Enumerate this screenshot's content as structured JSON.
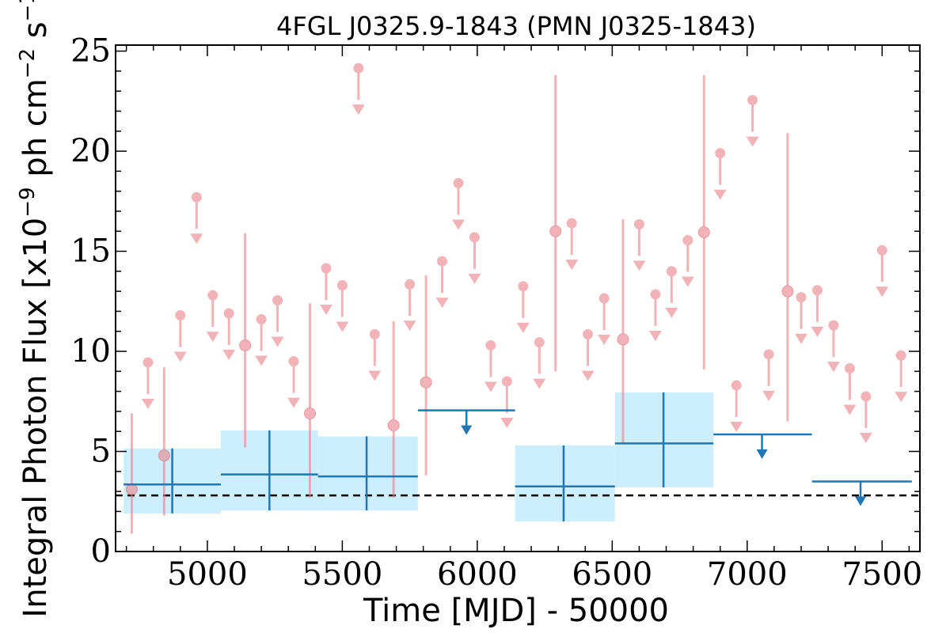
{
  "chart_data": {
    "type": "scatter",
    "title": "4FGL J0325.9-1843 (PMN J0325-1843)",
    "xlabel": "Time [MJD] - 50000",
    "ylabel": "Integral Photon Flux [x10^-9 ph cm^-2 s^-1]",
    "xlim": [
      4660,
      7640
    ],
    "ylim": [
      0,
      25.3
    ],
    "xticks": [
      5000,
      5500,
      6000,
      6500,
      7000,
      7500
    ],
    "yticks": [
      0,
      5,
      10,
      15,
      20,
      25
    ],
    "grid": false,
    "legend": "none",
    "colors": {
      "short_bins": "#e8828a",
      "long_bins": "#1f77b4",
      "long_bin_band": "#cdeefe",
      "average_line": "#000000"
    },
    "average_flux": 2.8,
    "short_bins": {
      "half_width": 30,
      "detections": [
        {
          "x": 4720,
          "y": 3.1,
          "ylo": 0.9,
          "yhi": 6.9
        },
        {
          "x": 4840,
          "y": 4.8,
          "ylo": 1.8,
          "yhi": 9.2
        },
        {
          "x": 5140,
          "y": 10.3,
          "ylo": 5.2,
          "yhi": 15.9
        },
        {
          "x": 5380,
          "y": 6.9,
          "ylo": 2.7,
          "yhi": 12.4
        },
        {
          "x": 5690,
          "y": 6.3,
          "ylo": 2.7,
          "yhi": 11.5
        },
        {
          "x": 5810,
          "y": 8.45,
          "ylo": 3.8,
          "yhi": 13.8
        },
        {
          "x": 6290,
          "y": 16.0,
          "ylo": 9.0,
          "yhi": 23.8
        },
        {
          "x": 6540,
          "y": 10.6,
          "ylo": 5.4,
          "yhi": 16.6
        },
        {
          "x": 6840,
          "y": 15.95,
          "ylo": 9.1,
          "yhi": 23.8
        },
        {
          "x": 7150,
          "y": 13.0,
          "ylo": 6.5,
          "yhi": 20.9
        }
      ],
      "upper_limits": [
        {
          "x": 4780,
          "y": 9.45
        },
        {
          "x": 4900,
          "y": 11.8
        },
        {
          "x": 4960,
          "y": 17.7
        },
        {
          "x": 5020,
          "y": 12.8
        },
        {
          "x": 5080,
          "y": 11.9
        },
        {
          "x": 5200,
          "y": 11.6
        },
        {
          "x": 5260,
          "y": 12.55
        },
        {
          "x": 5320,
          "y": 9.5
        },
        {
          "x": 5440,
          "y": 14.15
        },
        {
          "x": 5500,
          "y": 13.3
        },
        {
          "x": 5560,
          "y": 24.15
        },
        {
          "x": 5620,
          "y": 10.85
        },
        {
          "x": 5750,
          "y": 13.35
        },
        {
          "x": 5870,
          "y": 14.5
        },
        {
          "x": 5930,
          "y": 18.4
        },
        {
          "x": 5990,
          "y": 15.7
        },
        {
          "x": 6050,
          "y": 10.3
        },
        {
          "x": 6110,
          "y": 8.5
        },
        {
          "x": 6170,
          "y": 13.25
        },
        {
          "x": 6230,
          "y": 10.45
        },
        {
          "x": 6350,
          "y": 16.4
        },
        {
          "x": 6410,
          "y": 10.85
        },
        {
          "x": 6470,
          "y": 12.65
        },
        {
          "x": 6600,
          "y": 16.35
        },
        {
          "x": 6660,
          "y": 12.85
        },
        {
          "x": 6720,
          "y": 14.0
        },
        {
          "x": 6780,
          "y": 15.55
        },
        {
          "x": 6900,
          "y": 19.9
        },
        {
          "x": 6960,
          "y": 8.3
        },
        {
          "x": 7020,
          "y": 22.55
        },
        {
          "x": 7080,
          "y": 9.85
        },
        {
          "x": 7200,
          "y": 12.7
        },
        {
          "x": 7260,
          "y": 13.05
        },
        {
          "x": 7320,
          "y": 11.3
        },
        {
          "x": 7380,
          "y": 9.15
        },
        {
          "x": 7440,
          "y": 7.75
        },
        {
          "x": 7500,
          "y": 15.05
        },
        {
          "x": 7570,
          "y": 9.8
        }
      ]
    },
    "long_bins": {
      "detections": [
        {
          "x": 4870,
          "xlo": 4690,
          "xhi": 5050,
          "y": 3.35,
          "ylo": 1.9,
          "yhi": 5.15
        },
        {
          "x": 5230,
          "xlo": 5050,
          "xhi": 5410,
          "y": 3.85,
          "ylo": 2.05,
          "yhi": 6.05
        },
        {
          "x": 5590,
          "xlo": 5410,
          "xhi": 5780,
          "y": 3.75,
          "ylo": 2.05,
          "yhi": 5.75
        },
        {
          "x": 6320,
          "xlo": 6140,
          "xhi": 6510,
          "y": 3.25,
          "ylo": 1.5,
          "yhi": 5.3
        },
        {
          "x": 6690,
          "xlo": 6510,
          "xhi": 6875,
          "y": 5.4,
          "ylo": 3.2,
          "yhi": 7.95
        }
      ],
      "upper_limits": [
        {
          "x": 5960,
          "xlo": 5780,
          "xhi": 6140,
          "y": 7.05
        },
        {
          "x": 7055,
          "xlo": 6875,
          "xhi": 7240,
          "y": 5.85
        },
        {
          "x": 7420,
          "xlo": 7240,
          "xhi": 7610,
          "y": 3.5
        }
      ]
    }
  }
}
